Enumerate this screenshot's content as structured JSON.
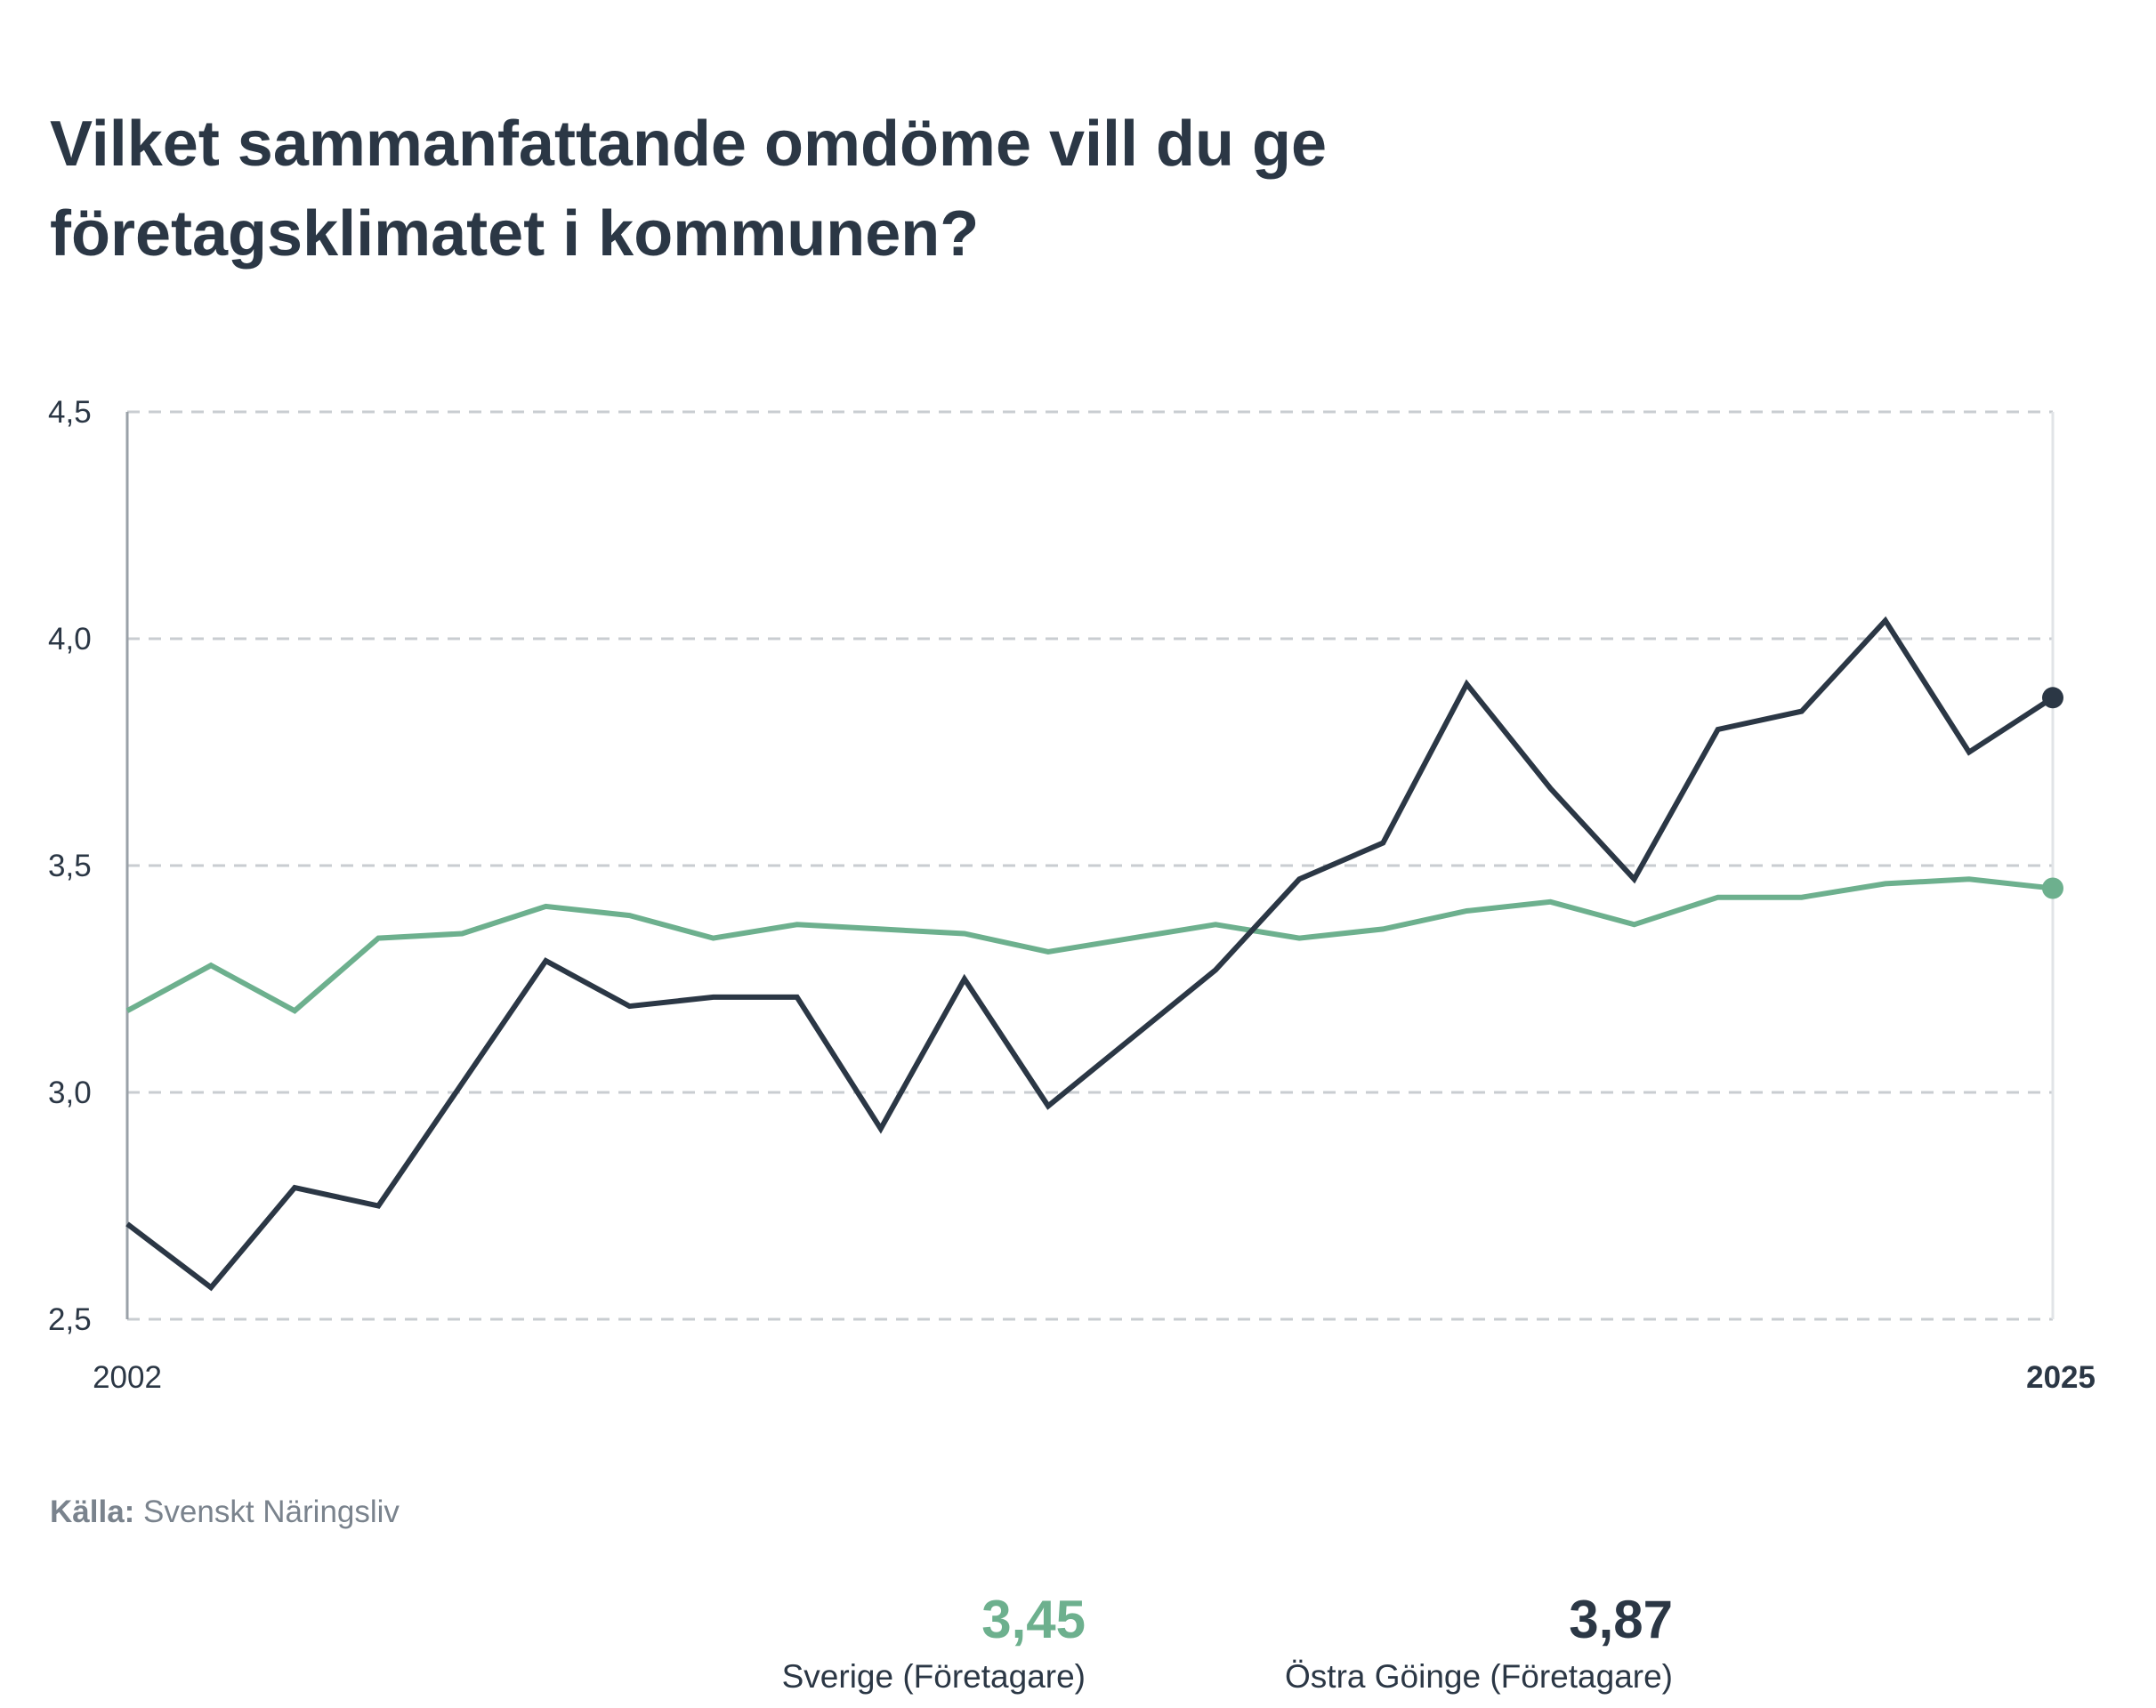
{
  "title": "Vilket sammanfattande omdöme vill du ge företagsklimatet i kommunen?",
  "source": {
    "label": "Källa:",
    "text": "Svenskt Näringsliv"
  },
  "legend": [
    {
      "value": "3,45",
      "name": "Sverige (Företagare)",
      "color": "#6db08e"
    },
    {
      "value": "3,87",
      "name": "Östra Göinge (Företagare)",
      "color": "#2b3745"
    }
  ],
  "chart_data": {
    "type": "line",
    "x": [
      2002,
      2003,
      2004,
      2005,
      2006,
      2007,
      2008,
      2009,
      2010,
      2011,
      2012,
      2013,
      2014,
      2015,
      2016,
      2017,
      2018,
      2019,
      2020,
      2021,
      2022,
      2023,
      2024,
      2025
    ],
    "x_tick_labels": [
      {
        "x": 2002,
        "label": "2002",
        "bold": false
      },
      {
        "x": 2025,
        "label": "2025",
        "bold": true
      }
    ],
    "ylim": [
      2.5,
      4.5
    ],
    "y_ticks": [
      {
        "value": 2.5,
        "label": "2,5"
      },
      {
        "value": 3.0,
        "label": "3,0"
      },
      {
        "value": 3.5,
        "label": "3,5"
      },
      {
        "value": 4.0,
        "label": "4,0"
      },
      {
        "value": 4.5,
        "label": "4,5"
      }
    ],
    "grid": true,
    "series": [
      {
        "name": "Sverige (Företagare)",
        "color": "#6db08e",
        "values": [
          3.18,
          3.28,
          3.18,
          3.34,
          3.35,
          3.41,
          3.39,
          3.34,
          3.37,
          3.36,
          3.35,
          3.31,
          3.34,
          3.37,
          3.34,
          3.36,
          3.4,
          3.42,
          3.37,
          3.43,
          3.43,
          3.46,
          3.47,
          3.45
        ]
      },
      {
        "name": "Östra Göinge (Företagare)",
        "color": "#2b3745",
        "values": [
          2.71,
          2.57,
          2.79,
          2.75,
          3.02,
          3.29,
          3.19,
          3.21,
          3.21,
          2.92,
          3.25,
          2.97,
          3.12,
          3.27,
          3.47,
          3.55,
          3.9,
          3.67,
          3.47,
          3.8,
          3.84,
          4.04,
          3.75,
          3.87
        ]
      }
    ]
  }
}
